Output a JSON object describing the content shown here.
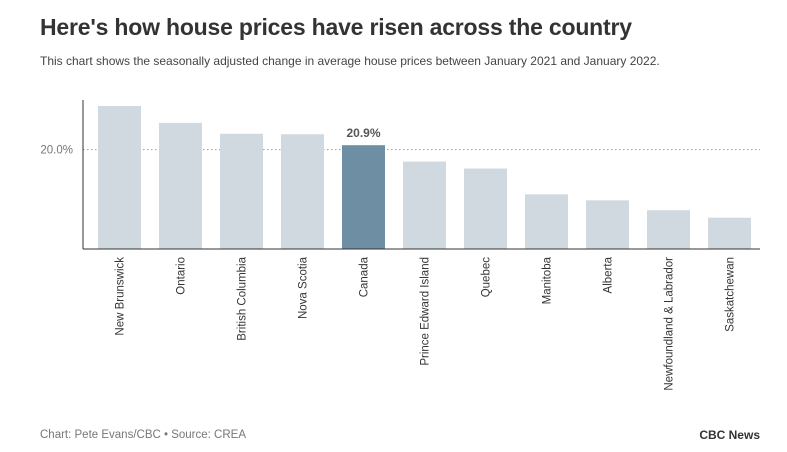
{
  "header": {
    "title": "Here's how house prices have risen across the country",
    "subtitle": "This chart shows the seasonally adjusted change in average house prices between January 2021 and January 2022."
  },
  "footer": {
    "credit": "Chart: Pete Evans/CBC • Source: CREA",
    "brand": "CBC News"
  },
  "colors": {
    "bar": "#cfd9df",
    "highlight": "#6e8fa3",
    "axis": "#333333",
    "gridline": "#9a9a9a"
  },
  "chart_data": {
    "type": "bar",
    "title": "Here's how house prices have risen across the country",
    "xlabel": "",
    "ylabel": "",
    "ylim": [
      0,
      30
    ],
    "yticks": [
      {
        "value": 20,
        "label": "20.0%"
      }
    ],
    "categories": [
      "New Brunswick",
      "Ontario",
      "British Columbia",
      "Nova Scotia",
      "Canada",
      "Prince Edward Island",
      "Quebec",
      "Manitoba",
      "Alberta",
      "Newfoundland & Labrador",
      "Saskatchewan"
    ],
    "values": [
      28.8,
      25.4,
      23.2,
      23.1,
      20.9,
      17.6,
      16.2,
      11.0,
      9.8,
      7.8,
      6.3
    ],
    "highlight": "Canada",
    "annotations": [
      {
        "category": "Canada",
        "label": "20.9%"
      }
    ]
  }
}
